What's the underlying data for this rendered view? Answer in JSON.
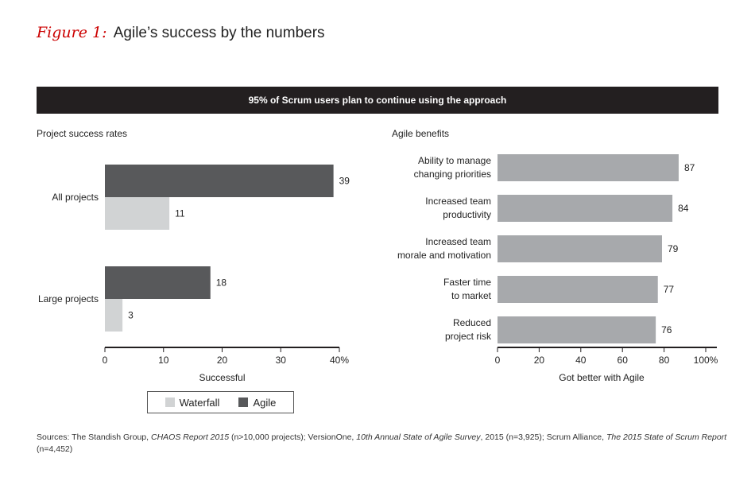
{
  "figure": {
    "number": "Figure 1:",
    "title": "Agile’s success by the numbers"
  },
  "banner": "95% of Scrum users plan to continue using the approach",
  "colors": {
    "agile": "#58595b",
    "waterfall": "#d1d3d4",
    "benefit": "#a7a9ac",
    "banner": "#231f20",
    "accent": "#cc0000"
  },
  "chart_data": [
    {
      "type": "bar",
      "orientation": "horizontal",
      "title": "Project success rates",
      "categories": [
        "All projects",
        "Large projects"
      ],
      "series": [
        {
          "name": "Agile",
          "values": [
            39,
            18
          ]
        },
        {
          "name": "Waterfall",
          "values": [
            11,
            3
          ]
        }
      ],
      "xlabel": "Successful",
      "xlim": [
        0,
        40
      ],
      "xticks": [
        "0",
        "10",
        "20",
        "30",
        "40%"
      ],
      "legend": "bottom"
    },
    {
      "type": "bar",
      "orientation": "horizontal",
      "title": "Agile benefits",
      "categories": [
        [
          "Ability to manage",
          "changing priorities"
        ],
        [
          "Increased team",
          "productivity"
        ],
        [
          "Increased team",
          "morale and motivation"
        ],
        [
          "Faster time",
          "to market"
        ],
        [
          "Reduced",
          "project risk"
        ]
      ],
      "values": [
        87,
        84,
        79,
        77,
        76
      ],
      "xlabel": "Got better with Agile",
      "xlim": [
        0,
        100
      ],
      "xticks": [
        "0",
        "20",
        "40",
        "60",
        "80",
        "100%"
      ]
    }
  ],
  "legend": {
    "waterfall": "Waterfall",
    "agile": "Agile"
  },
  "sources": {
    "p1": "Sources: The Standish Group, ",
    "t1": "CHAOS Report 2015",
    "p2": " (n>10,000 projects); VersionOne, ",
    "t2": "10th Annual State of Agile Survey",
    "p3": ", 2015 (n=3,925); Scrum Alliance, ",
    "t3": "The 2015 State of Scrum Report",
    "p4": " (n=4,452)"
  }
}
